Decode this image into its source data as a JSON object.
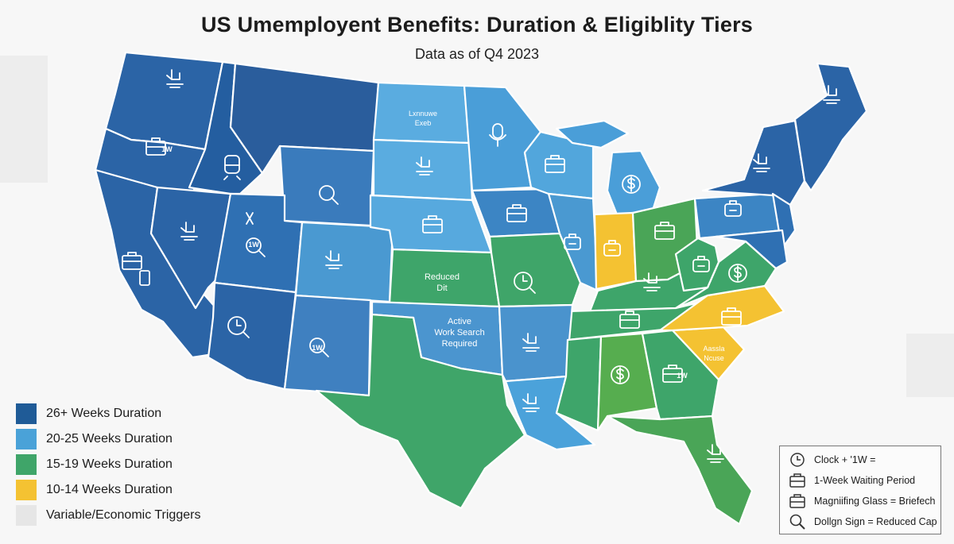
{
  "title": "US Umemployent Benefits: Duration & Eligiblity Tiers",
  "subtitle": "Data as of Q4 2023",
  "colors": {
    "tier_26_plus": "#2b64a6",
    "tier_26_plus_alt": "#2f70b3",
    "tier_20_25": "#4fa3d8",
    "tier_20_25_alt": "#3f8dcb",
    "tier_15_19": "#3ea56a",
    "tier_15_19_alt": "#56ad4f",
    "tier_10_14": "#f4c232",
    "variable": "#e6e6e6"
  },
  "legend": [
    {
      "label": "26+ Weeks Duration",
      "color": "#1f5b97"
    },
    {
      "label": "20-25 Weeks Duration",
      "color": "#4aa2d8"
    },
    {
      "label": "15-19 Weeks Duration",
      "color": "#3fa569"
    },
    {
      "label": "10-14 Weeks Duration",
      "color": "#f4c232"
    },
    {
      "label": "Variable/Economic Triggers",
      "color": "#e6e6e6"
    }
  ],
  "map_labels": {
    "kansas": [
      "Reduced",
      "Dit"
    ],
    "oklahoma": [
      "Active",
      "Work Search",
      "Required"
    ],
    "north_dakota": [
      "Lxnnuwe",
      "Exeb"
    ],
    "south_carolina": [
      "Aassla",
      "Ncuse"
    ]
  },
  "icon_badge": "1W",
  "key": {
    "rows": [
      {
        "icon": "clock-icon",
        "text": "Clock + '1W ="
      },
      {
        "icon": "briefcase-icon",
        "text": "1-Week Waiting Period"
      },
      {
        "icon": "briefcase-icon",
        "text": "Magniifing Glass = Briefech"
      },
      {
        "icon": "magnifier-icon",
        "text": "Dollgn Sign = Reduced Cap"
      }
    ]
  }
}
